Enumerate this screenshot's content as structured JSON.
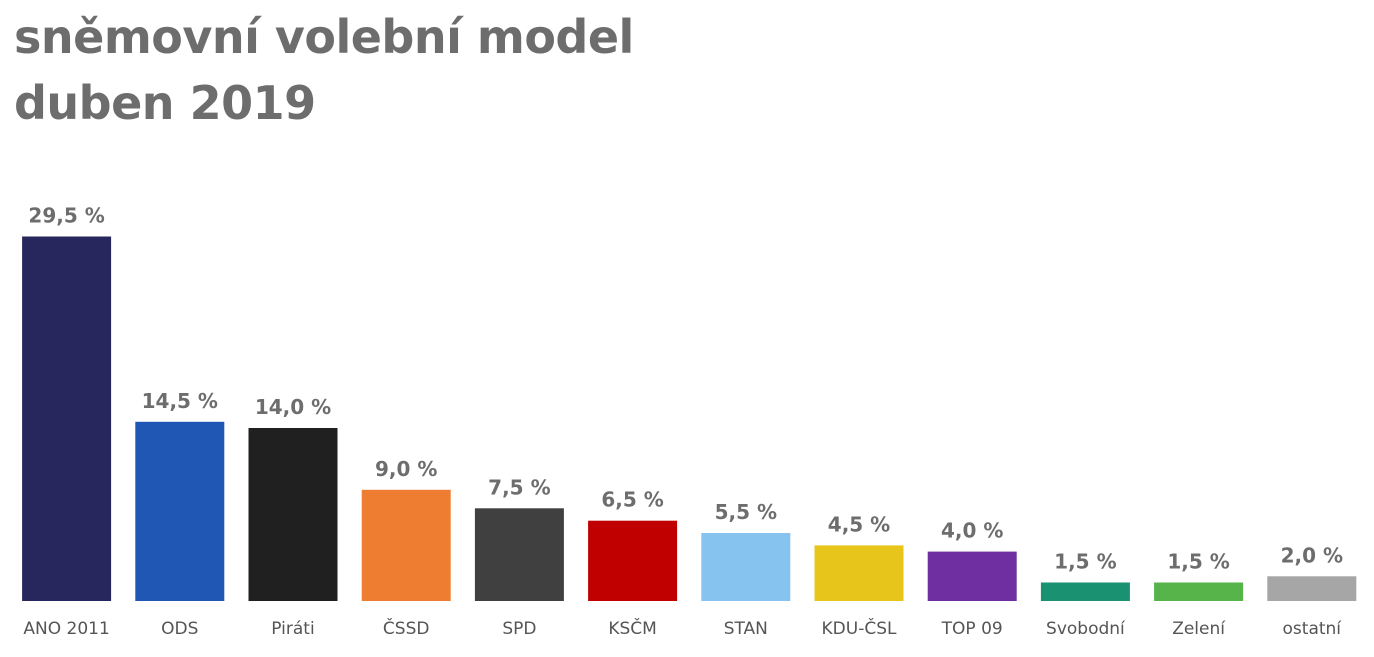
{
  "title": {
    "line1": "sněmovní volební model",
    "line2": "duben 2019"
  },
  "chart_data": {
    "type": "bar",
    "title": "sněmovní volební model duben 2019",
    "xlabel": "",
    "ylabel": "",
    "ylim": [
      0,
      30
    ],
    "grid": false,
    "legend": "none",
    "value_suffix": " %",
    "categories": [
      "ANO 2011",
      "ODS",
      "Piráti",
      "ČSSD",
      "SPD",
      "KSČM",
      "STAN",
      "KDU-ČSL",
      "TOP 09",
      "Svobodní",
      "Zelení",
      "ostatní"
    ],
    "values": [
      29.5,
      14.5,
      14.0,
      9.0,
      7.5,
      6.5,
      5.5,
      4.5,
      4.0,
      1.5,
      1.5,
      2.0
    ],
    "value_labels": [
      "29,5 %",
      "14,5 %",
      "14,0 %",
      "9,0 %",
      "7,5 %",
      "6,5 %",
      "5,5 %",
      "4,5 %",
      "4,0 %",
      "1,5 %",
      "1,5 %",
      "2,0 %"
    ],
    "colors": [
      "#27275d",
      "#2057b4",
      "#202020",
      "#ee7d32",
      "#404040",
      "#c00000",
      "#87c3ef",
      "#e8c51a",
      "#6f2fa0",
      "#1a9170",
      "#56b44a",
      "#a6a6a6"
    ]
  }
}
